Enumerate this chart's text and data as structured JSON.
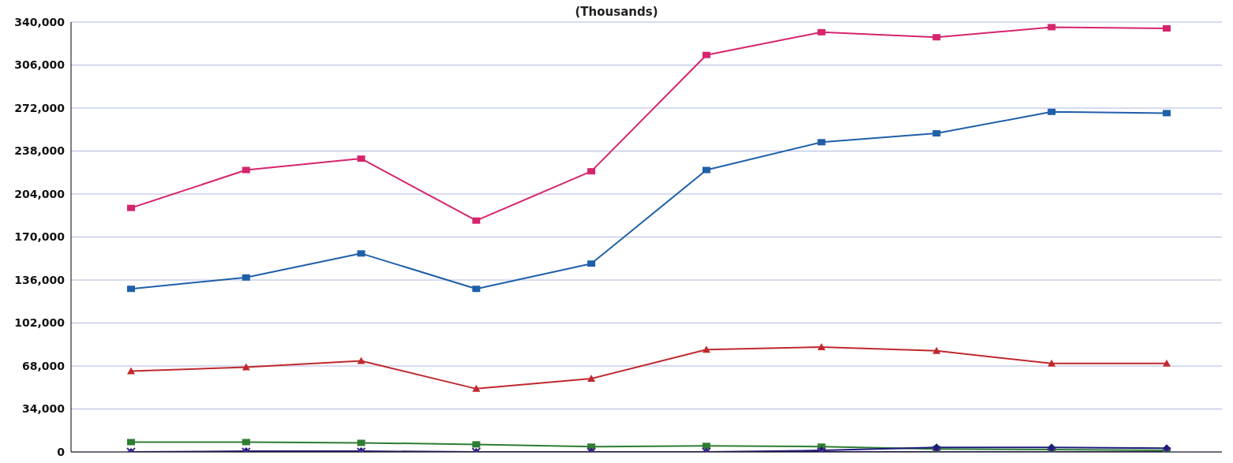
{
  "chart_data": {
    "type": "line",
    "title": "(Thousands)",
    "categories": [
      null,
      null,
      null,
      null,
      null,
      null,
      null,
      null,
      null,
      null
    ],
    "ylim": [
      0,
      340000
    ],
    "yticks": [
      {
        "value": 0,
        "label": "0"
      },
      {
        "value": 34000,
        "label": "34,000"
      },
      {
        "value": 68000,
        "label": "68,000"
      },
      {
        "value": 102000,
        "label": "102,000"
      },
      {
        "value": 136000,
        "label": "136,000"
      },
      {
        "value": 170000,
        "label": "170,000"
      },
      {
        "value": 204000,
        "label": "204,000"
      },
      {
        "value": 238000,
        "label": "238,000"
      },
      {
        "value": 272000,
        "label": "272,000"
      },
      {
        "value": 306000,
        "label": "306,000"
      },
      {
        "value": 340000,
        "label": "340,000"
      }
    ],
    "grid": "y",
    "legend": false,
    "tick_labels": "y",
    "series": [
      {
        "color": "#d6246e",
        "marker": "square",
        "values": [
          193000,
          223000,
          232000,
          183000,
          222000,
          314000,
          332000,
          328000,
          336000,
          335000
        ]
      },
      {
        "color": "#1f5fa8",
        "marker": "square",
        "values": [
          129000,
          138000,
          157000,
          129000,
          149000,
          223000,
          245000,
          252000,
          269000,
          268000
        ]
      },
      {
        "color": "#c0282d",
        "marker": "triangle",
        "values": [
          64000,
          67000,
          72000,
          50000,
          58000,
          81000,
          83000,
          80000,
          70000,
          70000
        ]
      },
      {
        "color": "#2e7d32",
        "marker": "square",
        "values": [
          7800,
          7800,
          7200,
          6000,
          4200,
          4800,
          4200,
          2400,
          1800,
          1200
        ]
      },
      {
        "color": "#1c1c7a",
        "marker": "diamond",
        "values": [
          0,
          600,
          600,
          0,
          0,
          0,
          1200,
          3600,
          3600,
          3000
        ]
      },
      {
        "color": "#4b2a8a",
        "marker": "cross",
        "values": [
          0,
          0,
          0,
          0,
          0,
          0,
          0,
          0,
          0,
          0
        ]
      }
    ]
  }
}
